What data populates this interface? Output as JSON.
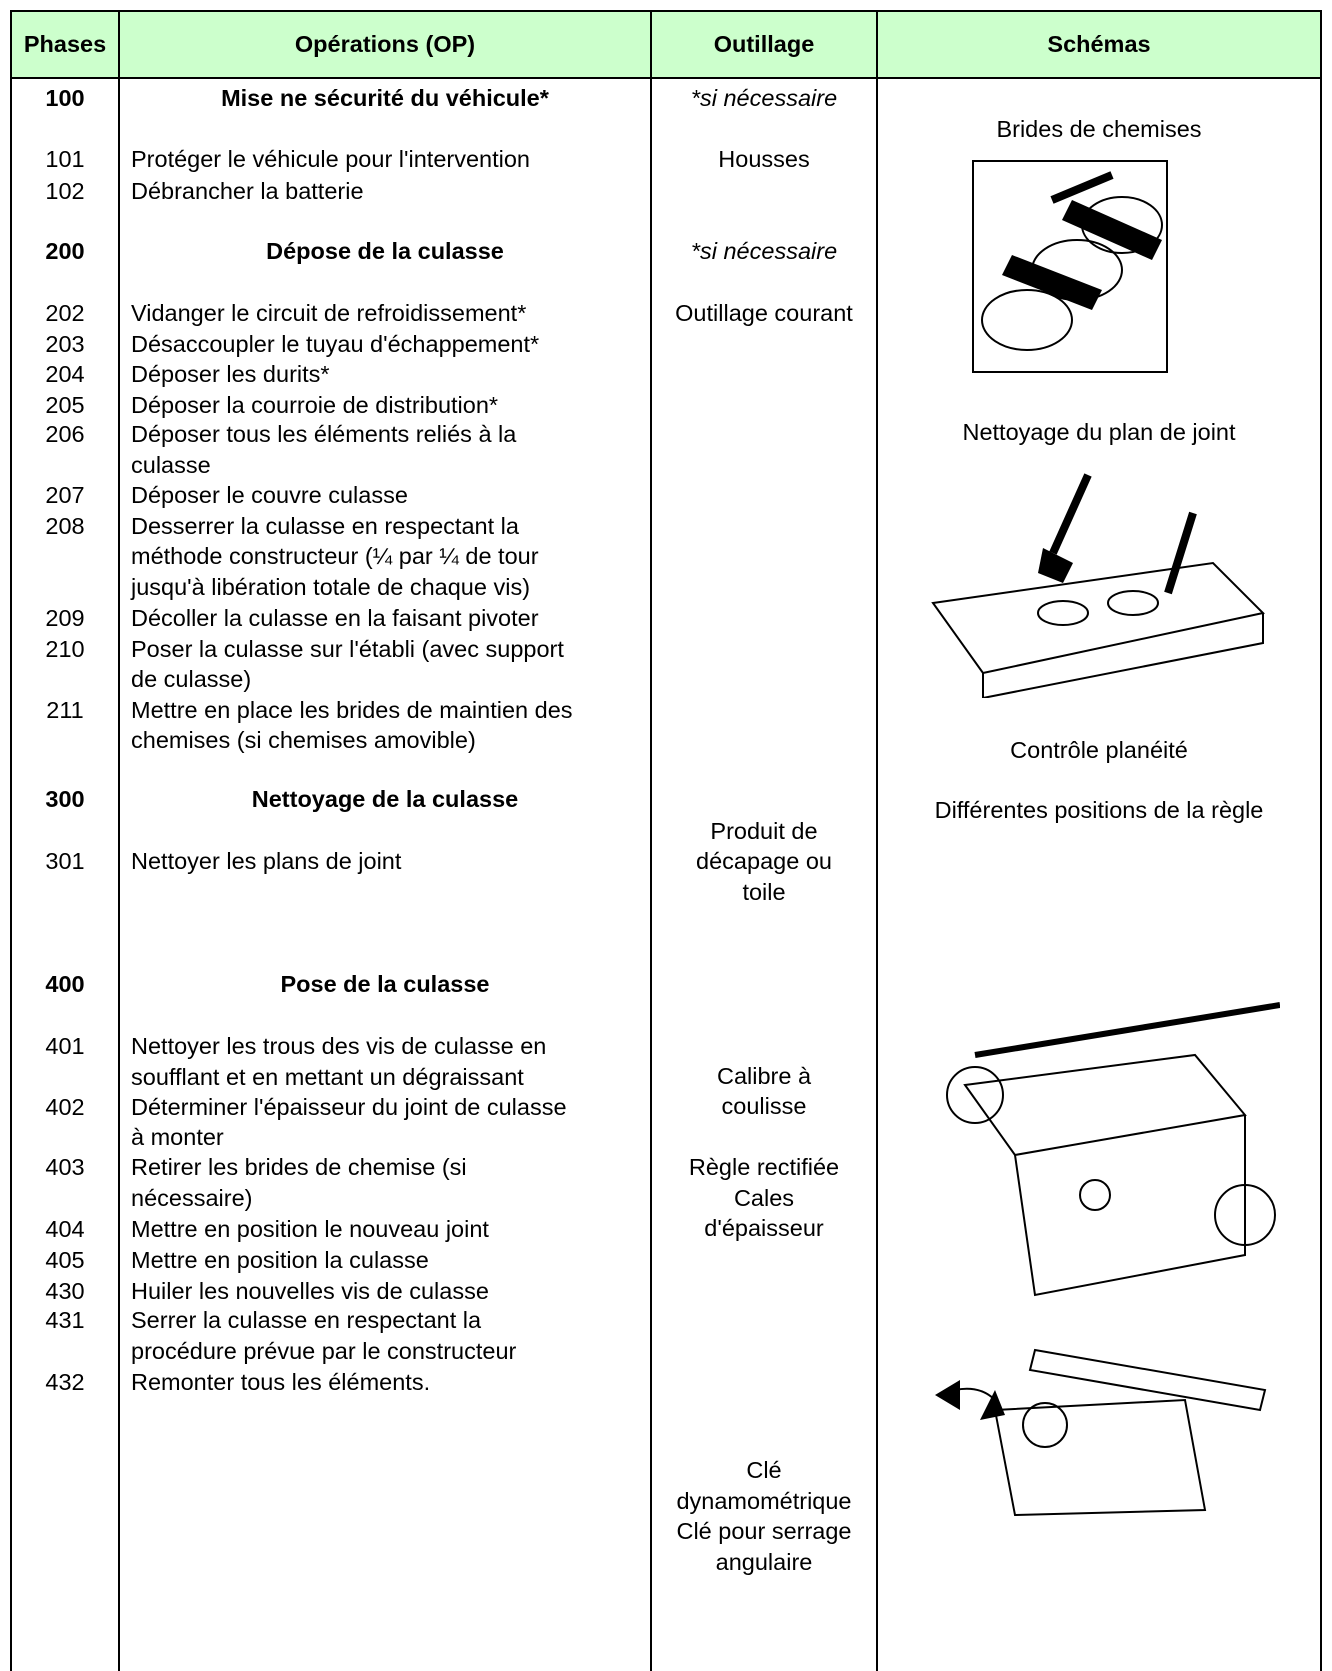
{
  "header": {
    "columns": [
      "Phases",
      "Opérations (OP)",
      "Outillage",
      "Schémas"
    ]
  },
  "operations": [
    {
      "phase": "100",
      "lines": [
        "Mise ne sécurité du véhicule*"
      ],
      "heading": true
    },
    {
      "phase": "101",
      "lines": [
        "Protéger le véhicule pour l'intervention"
      ]
    },
    {
      "phase": "102",
      "lines": [
        "Débrancher la batterie"
      ]
    },
    {
      "phase": "200",
      "lines": [
        "Dépose de la culasse"
      ],
      "heading": true
    },
    {
      "phase": "202",
      "lines": [
        "Vidanger le circuit de refroidissement*"
      ]
    },
    {
      "phase": "203",
      "lines": [
        "Désaccoupler le tuyau d'échappement*"
      ]
    },
    {
      "phase": "204",
      "lines": [
        "Déposer les durits*"
      ]
    },
    {
      "phase": "205",
      "lines": [
        "Déposer la courroie de distribution*"
      ]
    },
    {
      "phase": "206",
      "lines": [
        "Déposer tous les éléments reliés à la",
        "culasse"
      ]
    },
    {
      "phase": "207",
      "lines": [
        "Déposer le couvre culasse"
      ]
    },
    {
      "phase": "208",
      "lines": [
        "Desserrer la culasse en respectant la",
        "méthode constructeur (¼ par ¼ de tour",
        "jusqu'à libération totale de chaque vis)"
      ]
    },
    {
      "phase": "209",
      "lines": [
        "Décoller la culasse en la faisant pivoter"
      ]
    },
    {
      "phase": "210",
      "lines": [
        "Poser la culasse sur l'établi (avec support",
        "de culasse)"
      ]
    },
    {
      "phase": "211",
      "lines": [
        "Mettre en place les brides de maintien des",
        "chemises (si chemises amovible)"
      ]
    },
    {
      "phase": "300",
      "lines": [
        "Nettoyage de la culasse"
      ],
      "heading": true
    },
    {
      "phase": "301",
      "lines": [
        "Nettoyer les plans de joint"
      ]
    },
    {
      "phase": "400",
      "lines": [
        "Pose de la culasse"
      ],
      "heading": true
    },
    {
      "phase": "401",
      "lines": [
        "Nettoyer les trous des vis de culasse en",
        "soufflant et en mettant un dégraissant"
      ]
    },
    {
      "phase": "402",
      "lines": [
        "Déterminer l'épaisseur du joint de culasse",
        "à monter"
      ]
    },
    {
      "phase": "403",
      "lines": [
        "Retirer les brides de chemise (si",
        "nécessaire)"
      ]
    },
    {
      "phase": "404",
      "lines": [
        "Mettre en position le nouveau joint"
      ]
    },
    {
      "phase": "405",
      "lines": [
        "Mettre en position la culasse"
      ]
    },
    {
      "phase": "430",
      "lines": [
        "Huiler les nouvelles vis de culasse"
      ]
    },
    {
      "phase": "431",
      "lines": [
        "Serrer la culasse en respectant la",
        "procédure prévue par le constructeur"
      ]
    },
    {
      "phase": "432",
      "lines": [
        "Remonter tous les éléments."
      ]
    }
  ],
  "tools": [
    {
      "lines": [
        "*si nécessaire"
      ],
      "italic": true
    },
    {
      "lines": [
        "Housses"
      ]
    },
    {
      "lines": [
        "*si nécessaire"
      ],
      "italic": true
    },
    {
      "lines": [
        "Outillage courant"
      ]
    },
    {
      "lines": [
        "Produit de",
        "décapage ou",
        "toile"
      ]
    },
    {
      "lines": [
        "Calibre à",
        "coulisse"
      ]
    },
    {
      "lines": [
        "Règle rectifiée",
        "Cales",
        "d'épaisseur"
      ]
    },
    {
      "lines": [
        "Clé",
        "dynamométrique",
        "Clé pour serrage",
        "angulaire"
      ]
    }
  ],
  "schemas": [
    "Brides de chemises",
    "Nettoyage du plan de joint",
    "Contrôle planéité",
    "Différentes positions de la règle"
  ]
}
